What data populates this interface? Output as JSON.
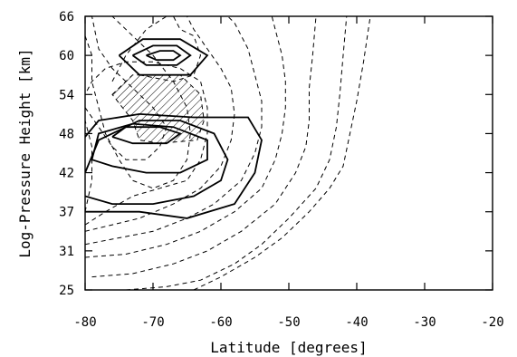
{
  "chart_data": {
    "type": "contour",
    "xlabel": "Latitude [degrees]",
    "ylabel": "Log-Pressure Height [km]",
    "xlim": [
      -80,
      -20
    ],
    "ylim": [
      25,
      66
    ],
    "x_ticks": [
      -80,
      -70,
      -60,
      -50,
      -40,
      -30,
      -20
    ],
    "y_ticks": [
      25,
      31,
      37,
      42,
      48,
      54,
      60,
      66
    ],
    "x_tick_labels": [
      "-80",
      "-70",
      "-60",
      "-50",
      "-40",
      "-30",
      "-20"
    ],
    "y_tick_labels": [
      "25",
      "31",
      "37",
      "42",
      "48",
      "54",
      "60",
      "66"
    ],
    "grid": false,
    "dashed_contours": [
      [
        [
          -80,
          37
        ],
        [
          -79,
          41
        ],
        [
          -79,
          46
        ],
        [
          -80,
          50
        ],
        [
          -80,
          54
        ]
      ],
      [
        [
          -80,
          35
        ],
        [
          -77,
          37
        ],
        [
          -73,
          39
        ],
        [
          -69,
          40
        ],
        [
          -65,
          41
        ],
        [
          -63,
          44
        ],
        [
          -62,
          48
        ],
        [
          -62,
          52
        ],
        [
          -63,
          56
        ],
        [
          -66,
          58
        ],
        [
          -70,
          59
        ],
        [
          -74,
          59
        ],
        [
          -77,
          58
        ],
        [
          -79,
          56
        ],
        [
          -80,
          54
        ]
      ],
      [
        [
          -80,
          34
        ],
        [
          -76,
          35
        ],
        [
          -72,
          36
        ],
        [
          -67,
          38
        ],
        [
          -63,
          40
        ],
        [
          -60,
          43
        ],
        [
          -58.5,
          47
        ],
        [
          -58,
          51
        ],
        [
          -58.5,
          55
        ],
        [
          -60,
          58
        ],
        [
          -62,
          61
        ],
        [
          -64,
          64
        ],
        [
          -65,
          66
        ]
      ],
      [
        [
          -80,
          32
        ],
        [
          -75,
          33
        ],
        [
          -70,
          34
        ],
        [
          -65,
          36
        ],
        [
          -61,
          38
        ],
        [
          -57,
          41
        ],
        [
          -55,
          45
        ],
        [
          -54,
          49
        ],
        [
          -54,
          53
        ],
        [
          -55,
          57
        ],
        [
          -56,
          61
        ],
        [
          -58,
          65
        ],
        [
          -59,
          66
        ]
      ],
      [
        [
          -80,
          30
        ],
        [
          -74,
          30.5
        ],
        [
          -68,
          32
        ],
        [
          -63,
          34
        ],
        [
          -58,
          37
        ],
        [
          -54,
          40
        ],
        [
          -52,
          44
        ],
        [
          -51,
          48
        ],
        [
          -50.5,
          52
        ],
        [
          -50.5,
          56
        ],
        [
          -51,
          60
        ],
        [
          -52,
          64
        ],
        [
          -52.5,
          66
        ]
      ],
      [
        [
          -79,
          27
        ],
        [
          -73,
          27.5
        ],
        [
          -67,
          29
        ],
        [
          -62,
          31
        ],
        [
          -57,
          34
        ],
        [
          -52,
          38
        ],
        [
          -49,
          42
        ],
        [
          -47.5,
          46
        ],
        [
          -47,
          50
        ],
        [
          -47,
          55
        ],
        [
          -46.5,
          60
        ],
        [
          -46,
          66
        ]
      ],
      [
        [
          -74,
          25
        ],
        [
          -68,
          25.5
        ],
        [
          -63,
          26.5
        ],
        [
          -58,
          29
        ],
        [
          -54,
          32
        ],
        [
          -50,
          36
        ],
        [
          -46,
          40
        ],
        [
          -44,
          44
        ],
        [
          -43,
          49
        ],
        [
          -42.5,
          54
        ],
        [
          -42,
          60
        ],
        [
          -41.5,
          66
        ]
      ],
      [
        [
          -70,
          25
        ],
        [
          -64,
          25
        ],
        [
          -60,
          27
        ],
        [
          -55,
          30
        ],
        [
          -51,
          33
        ],
        [
          -47,
          37
        ],
        [
          -44,
          40
        ],
        [
          -42,
          43
        ],
        [
          -41,
          48
        ],
        [
          -40,
          53
        ],
        [
          -39,
          59
        ],
        [
          -38,
          66
        ]
      ],
      [
        [
          -80,
          63
        ],
        [
          -79,
          60
        ],
        [
          -79,
          56
        ],
        [
          -78,
          52
        ],
        [
          -77,
          48
        ],
        [
          -75,
          44
        ],
        [
          -73,
          41
        ],
        [
          -70,
          40
        ],
        [
          -67,
          41
        ],
        [
          -65,
          44
        ],
        [
          -64.5,
          48
        ],
        [
          -65,
          52
        ],
        [
          -67,
          56
        ],
        [
          -70,
          60
        ],
        [
          -73,
          63
        ],
        [
          -76,
          66
        ]
      ],
      [
        [
          -80,
          52
        ],
        [
          -78,
          49
        ],
        [
          -76,
          46
        ],
        [
          -74,
          44
        ],
        [
          -71,
          44
        ],
        [
          -69,
          46
        ],
        [
          -68,
          49
        ],
        [
          -70,
          52
        ],
        [
          -73,
          55
        ],
        [
          -76,
          58
        ],
        [
          -78,
          61
        ],
        [
          -79,
          66
        ]
      ],
      [
        [
          -76,
          56
        ],
        [
          -74,
          60
        ],
        [
          -71,
          64
        ],
        [
          -68,
          66
        ]
      ],
      [
        [
          -72,
          57
        ],
        [
          -67,
          56
        ],
        [
          -64,
          57
        ],
        [
          -63,
          60
        ],
        [
          -64,
          63
        ],
        [
          -66,
          64
        ],
        [
          -67,
          66
        ]
      ]
    ],
    "solid_contours": [
      [
        [
          -80,
          47.5
        ],
        [
          -78,
          50
        ],
        [
          -72,
          51
        ],
        [
          -64,
          50.5
        ],
        [
          -56,
          50.5
        ],
        [
          -54,
          47
        ],
        [
          -55,
          42
        ],
        [
          -58,
          38
        ],
        [
          -65,
          36
        ],
        [
          -72,
          37
        ],
        [
          -80,
          37
        ]
      ],
      [
        [
          -80,
          42
        ],
        [
          -78,
          47
        ],
        [
          -72,
          50
        ],
        [
          -66,
          50
        ],
        [
          -61,
          48
        ],
        [
          -59,
          44
        ],
        [
          -60,
          41
        ],
        [
          -64,
          39
        ],
        [
          -70,
          38
        ],
        [
          -76,
          38
        ],
        [
          -80,
          39
        ]
      ],
      [
        [
          -79,
          44
        ],
        [
          -78,
          48
        ],
        [
          -73,
          49.5
        ],
        [
          -67,
          49
        ],
        [
          -62,
          47
        ],
        [
          -62,
          44
        ],
        [
          -66,
          42
        ],
        [
          -71,
          42
        ],
        [
          -76,
          43
        ],
        [
          -79,
          44
        ]
      ],
      [
        [
          -76,
          47.5
        ],
        [
          -74,
          49
        ],
        [
          -69,
          49
        ],
        [
          -66,
          48
        ],
        [
          -68,
          46.5
        ],
        [
          -73,
          46.5
        ],
        [
          -76,
          47.5
        ]
      ],
      [
        [
          -75,
          60
        ],
        [
          -71.5,
          62.5
        ],
        [
          -66,
          62.5
        ],
        [
          -62,
          60
        ],
        [
          -64.5,
          57
        ],
        [
          -72,
          57
        ],
        [
          -75,
          60
        ]
      ],
      [
        [
          -73,
          60
        ],
        [
          -70,
          61.5
        ],
        [
          -66.5,
          61.5
        ],
        [
          -64.5,
          60
        ],
        [
          -66.5,
          58.5
        ],
        [
          -71,
          58.5
        ],
        [
          -73,
          60
        ]
      ],
      [
        [
          -71,
          60
        ],
        [
          -69,
          60.7
        ],
        [
          -67,
          60.7
        ],
        [
          -66,
          60
        ],
        [
          -67,
          59.3
        ],
        [
          -69.5,
          59.3
        ],
        [
          -71,
          60
        ]
      ]
    ],
    "hatched_region": [
      [
        -76,
        54
      ],
      [
        -73,
        57
      ],
      [
        -66,
        57
      ],
      [
        -63,
        54
      ],
      [
        -62.5,
        50
      ],
      [
        -63.5,
        47
      ],
      [
        -69,
        46.5
      ],
      [
        -72,
        47
      ],
      [
        -73,
        50
      ],
      [
        -76,
        54
      ]
    ]
  }
}
